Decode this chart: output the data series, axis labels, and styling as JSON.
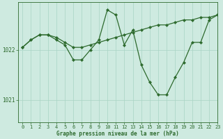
{
  "title": "Graphe pression niveau de la mer (hPa)",
  "bg_color": "#ceeae0",
  "line_color": "#2d6a2d",
  "grid_color": "#a8d4c4",
  "xlim": [
    -0.5,
    23
  ],
  "ylim": [
    1020.55,
    1022.95
  ],
  "yticks": [
    1021,
    1022
  ],
  "xticks": [
    0,
    1,
    2,
    3,
    4,
    5,
    6,
    7,
    8,
    9,
    10,
    11,
    12,
    13,
    14,
    15,
    16,
    17,
    18,
    19,
    20,
    21,
    22,
    23
  ],
  "line1_x": [
    0,
    1,
    2,
    3,
    4,
    5,
    6,
    7,
    8,
    9,
    10,
    11,
    12,
    13,
    14,
    15,
    16,
    17,
    18,
    19,
    20,
    21,
    22,
    23
  ],
  "line1_y": [
    1022.05,
    1022.2,
    1022.3,
    1022.3,
    1022.25,
    1022.15,
    1022.05,
    1022.05,
    1022.1,
    1022.15,
    1022.2,
    1022.25,
    1022.3,
    1022.35,
    1022.4,
    1022.45,
    1022.5,
    1022.5,
    1022.55,
    1022.6,
    1022.6,
    1022.65,
    1022.65,
    1022.7
  ],
  "line2_x": [
    0,
    1,
    2,
    3,
    4,
    5,
    6,
    7,
    8,
    9,
    10,
    11,
    12,
    13,
    14,
    15,
    16,
    17,
    18,
    19,
    20,
    21,
    22,
    23
  ],
  "line2_y": [
    1022.05,
    1022.2,
    1022.3,
    1022.3,
    1022.2,
    1022.1,
    1021.8,
    1021.8,
    1022.0,
    1022.2,
    1022.8,
    1022.7,
    1022.1,
    1022.4,
    1021.7,
    1021.35,
    1021.1,
    1021.1,
    1021.45,
    1021.75,
    1022.15,
    1022.15,
    1022.6,
    1022.7
  ]
}
